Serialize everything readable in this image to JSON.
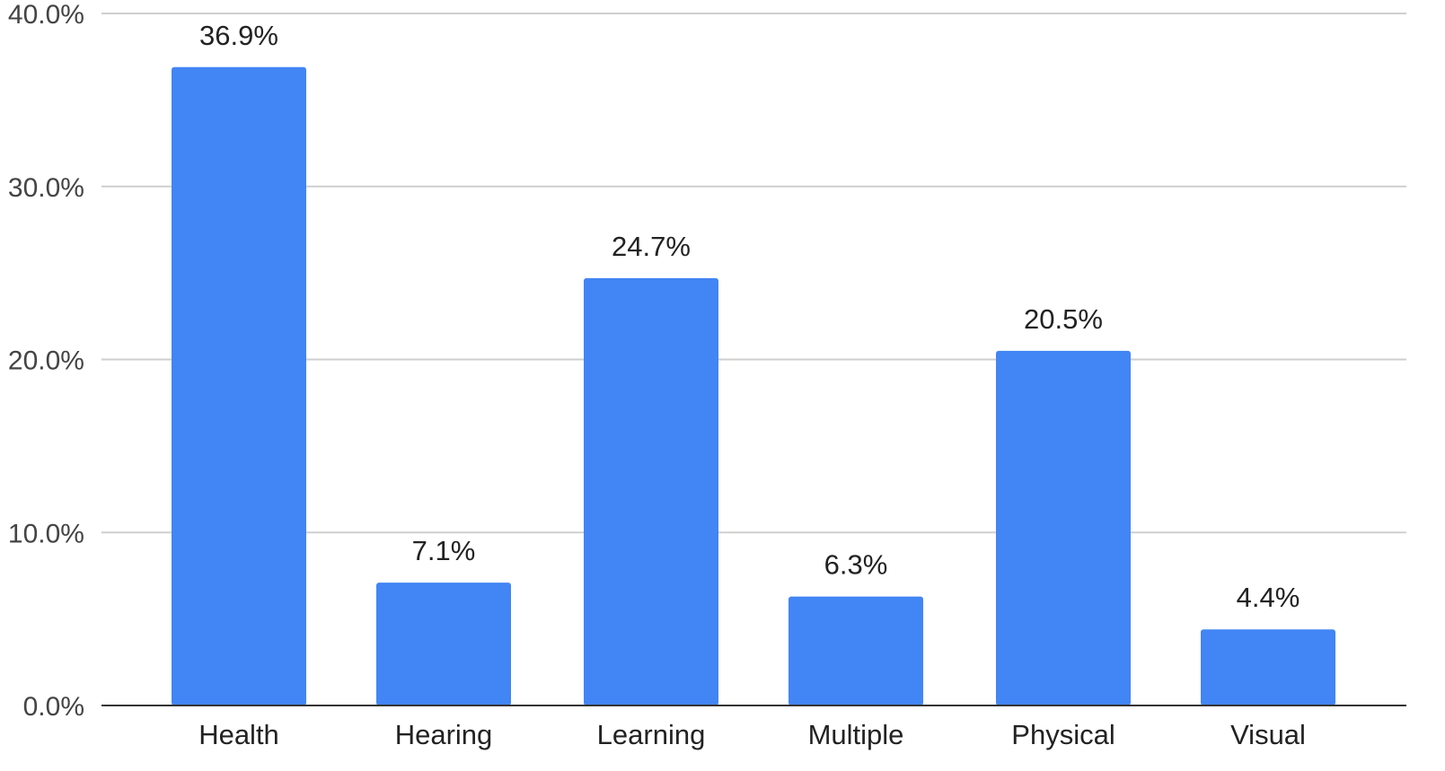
{
  "chart_data": {
    "type": "bar",
    "categories": [
      "Health",
      "Hearing",
      "Learning",
      "Multiple",
      "Physical",
      "Visual"
    ],
    "values": [
      36.9,
      7.1,
      24.7,
      6.3,
      20.5,
      4.4
    ],
    "data_labels": [
      "36.9%",
      "7.1%",
      "24.7%",
      "6.3%",
      "20.5%",
      "4.4%"
    ],
    "y_ticks": [
      "0.0%",
      "10.0%",
      "20.0%",
      "30.0%",
      "40.0%"
    ],
    "ylim": [
      0,
      40
    ],
    "grid": true,
    "legend": "none",
    "bar_color": "#4285f4"
  }
}
